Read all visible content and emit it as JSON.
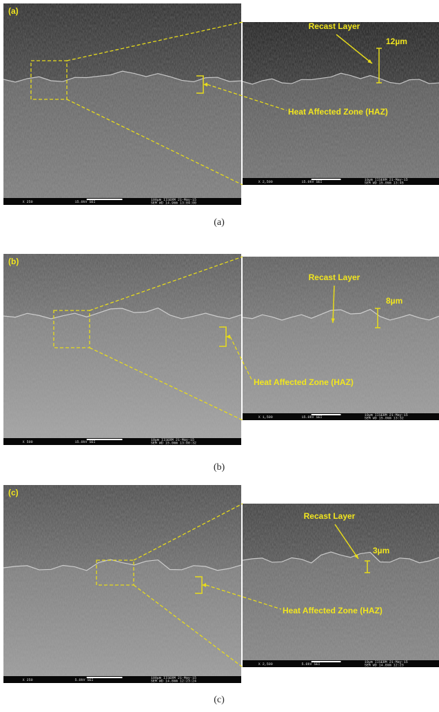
{
  "panels": [
    {
      "label": "(a)",
      "recast": "Recast Layer",
      "thickness": "12µm",
      "haz": "Heat Affected Zone (HAZ)",
      "caption": "(a)",
      "left_databar": [
        "X 250",
        "15.0kV SEI",
        "100µm IISERM 21-May-15",
        "SEM WD 14.9mm 13:04:00"
      ],
      "right_databar": [
        "X 2,500",
        "15.0kV SEI",
        "10µm IISERM 21-May-15",
        "SEM WD 15.0mm 13:45"
      ]
    },
    {
      "label": "(b)",
      "recast": "Recast Layer",
      "thickness": "8µm",
      "haz": "Heat Affected Zone (HAZ)",
      "caption": "(b)",
      "left_databar": [
        "X 500",
        "15.0kV SEI",
        "10µm IISERM 21-May-15",
        "SEM WD 15.0mm 13:00:32"
      ],
      "right_databar": [
        "X 1,500",
        "15.0kV SEI",
        "10µm IISERM 21-May-15",
        "SEM WD 15.0mm 13:32"
      ]
    },
    {
      "label": "(c)",
      "recast": "Recast Layer",
      "thickness": "3µm",
      "haz": "Heat Affected Zone (HAZ)",
      "caption": "(c)",
      "left_databar": [
        "X 250",
        "5.0kV SEI",
        "100µm IISERM 21-May-15",
        "SEM WD 14.8mm 12:23:24"
      ],
      "right_databar": [
        "X 2,500",
        "5.0kV SEI",
        "10µm IISERM 21-May-15",
        "SEM WD 14.8mm 12:23"
      ]
    }
  ]
}
